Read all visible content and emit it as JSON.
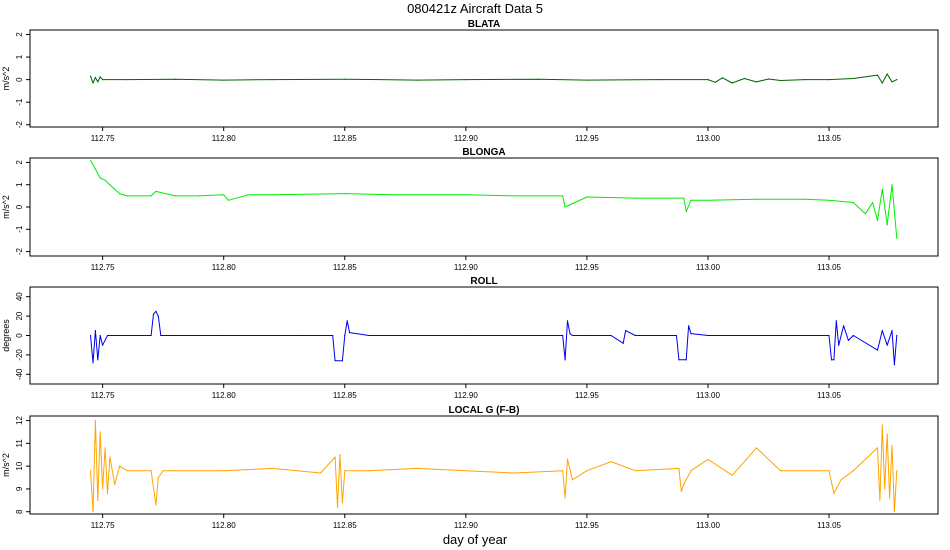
{
  "figure": {
    "title": "080421z   Aircraft Data 5",
    "xlabel": "day of year"
  },
  "chart_data": [
    {
      "type": "line",
      "title": "BLATA",
      "ylabel": "m/s^2",
      "xlim": [
        112.72,
        113.095
      ],
      "ylim": [
        -2.1,
        2.2
      ],
      "yticks": [
        -2,
        -1,
        0,
        1,
        2
      ],
      "xticks": [
        112.75,
        112.8,
        112.85,
        112.9,
        112.95,
        113.0,
        113.05
      ],
      "xtick_labels": [
        "112.75",
        "112.80",
        "112.85",
        "112.90",
        "112.95",
        "113.00",
        "113.05"
      ],
      "color": "#006400",
      "series": [
        {
          "x": [
            112.745,
            112.746,
            112.747,
            112.748,
            112.749,
            112.75,
            112.76,
            112.78,
            112.8,
            112.82,
            112.85,
            112.88,
            112.9,
            112.93,
            112.95,
            112.98,
            113.0,
            113.003,
            113.006,
            113.01,
            113.015,
            113.02,
            113.025,
            113.03,
            113.04,
            113.05,
            113.06,
            113.07,
            113.072,
            113.074,
            113.076,
            113.078
          ],
          "y": [
            0.15,
            -0.15,
            0.1,
            -0.1,
            0.12,
            0.0,
            0.0,
            0.02,
            -0.02,
            0.0,
            0.02,
            -0.02,
            0.0,
            0.02,
            -0.02,
            0.0,
            0.0,
            -0.12,
            0.08,
            -0.15,
            0.05,
            -0.1,
            0.03,
            -0.04,
            0.0,
            0.0,
            0.05,
            0.2,
            -0.15,
            0.25,
            -0.1,
            0.0
          ]
        }
      ]
    },
    {
      "type": "line",
      "title": "BLONGA",
      "ylabel": "m/s^2",
      "xlim": [
        112.72,
        113.095
      ],
      "ylim": [
        -2.2,
        2.2
      ],
      "yticks": [
        -2,
        -1,
        0,
        1,
        2
      ],
      "xticks": [
        112.75,
        112.8,
        112.85,
        112.9,
        112.95,
        113.0,
        113.05
      ],
      "xtick_labels": [
        "112.75",
        "112.80",
        "112.85",
        "112.90",
        "112.95",
        "113.00",
        "113.05"
      ],
      "color": "#00ee00",
      "series": [
        {
          "x": [
            112.745,
            112.747,
            112.749,
            112.751,
            112.753,
            112.755,
            112.757,
            112.76,
            112.77,
            112.772,
            112.78,
            112.79,
            112.8,
            112.802,
            112.81,
            112.82,
            112.85,
            112.87,
            112.9,
            112.92,
            112.94,
            112.941,
            112.95,
            112.97,
            112.99,
            112.991,
            112.993,
            113.0,
            113.02,
            113.04,
            113.05,
            113.06,
            113.065,
            113.068,
            113.07,
            113.072,
            113.074,
            113.076,
            113.078
          ],
          "y": [
            2.1,
            1.7,
            1.3,
            1.2,
            1.0,
            0.8,
            0.6,
            0.5,
            0.5,
            0.7,
            0.5,
            0.5,
            0.55,
            0.3,
            0.55,
            0.55,
            0.6,
            0.55,
            0.55,
            0.5,
            0.5,
            0.0,
            0.45,
            0.4,
            0.4,
            -0.2,
            0.3,
            0.3,
            0.35,
            0.35,
            0.3,
            0.2,
            -0.3,
            0.2,
            -0.6,
            0.8,
            -0.8,
            1.0,
            -1.4
          ]
        }
      ]
    },
    {
      "type": "line",
      "title": "ROLL",
      "ylabel": "degrees",
      "xlim": [
        112.72,
        113.095
      ],
      "ylim": [
        -50,
        50
      ],
      "yticks": [
        -40,
        -20,
        0,
        20,
        40
      ],
      "xticks": [
        112.75,
        112.8,
        112.85,
        112.9,
        112.95,
        113.0,
        113.05
      ],
      "xtick_labels": [
        "112.75",
        "112.80",
        "112.85",
        "112.90",
        "112.95",
        "113.00",
        "113.05"
      ],
      "color": "#0000ee",
      "series": [
        {
          "x": [
            112.745,
            112.746,
            112.747,
            112.748,
            112.749,
            112.75,
            112.752,
            112.77,
            112.771,
            112.772,
            112.773,
            112.774,
            112.78,
            112.8,
            112.83,
            112.845,
            112.846,
            112.849,
            112.85,
            112.851,
            112.852,
            112.86,
            112.9,
            112.94,
            112.941,
            112.942,
            112.943,
            112.944,
            112.95,
            112.96,
            112.965,
            112.966,
            112.97,
            112.987,
            112.988,
            112.991,
            112.992,
            112.993,
            113.0,
            113.03,
            113.05,
            113.051,
            113.052,
            113.053,
            113.054,
            113.056,
            113.058,
            113.06,
            113.07,
            113.072,
            113.074,
            113.076,
            113.077,
            113.078
          ],
          "y": [
            0,
            -28,
            5,
            -25,
            0,
            -10,
            0,
            0,
            22,
            25,
            20,
            0,
            0,
            0,
            0,
            0,
            -26,
            -26,
            0,
            15,
            3,
            0,
            0,
            0,
            -25,
            15,
            2,
            0,
            0,
            0,
            -8,
            5,
            0,
            0,
            -25,
            -25,
            10,
            2,
            0,
            0,
            0,
            -25,
            -25,
            15,
            -10,
            10,
            -5,
            0,
            -15,
            5,
            -10,
            5,
            -30,
            0
          ]
        }
      ]
    },
    {
      "type": "line",
      "title": "LOCAL G (F-B)",
      "ylabel": "m/s^2",
      "xlim": [
        112.72,
        113.095
      ],
      "ylim": [
        7.9,
        12.2
      ],
      "yticks": [
        8,
        9,
        10,
        11,
        12
      ],
      "xticks": [
        112.75,
        112.8,
        112.85,
        112.9,
        112.95,
        113.0,
        113.05
      ],
      "xtick_labels": [
        "112.75",
        "112.80",
        "112.85",
        "112.90",
        "112.95",
        "113.00",
        "113.05"
      ],
      "color": "#ffa500",
      "series": [
        {
          "x": [
            112.745,
            112.746,
            112.747,
            112.748,
            112.749,
            112.75,
            112.751,
            112.752,
            112.753,
            112.755,
            112.757,
            112.76,
            112.77,
            112.772,
            112.773,
            112.775,
            112.78,
            112.8,
            112.82,
            112.84,
            112.846,
            112.847,
            112.848,
            112.849,
            112.85,
            112.86,
            112.88,
            112.9,
            112.92,
            112.94,
            112.941,
            112.942,
            112.944,
            112.95,
            112.96,
            112.97,
            112.988,
            112.989,
            112.99,
            112.993,
            113.0,
            113.01,
            113.02,
            113.03,
            113.05,
            113.052,
            113.055,
            113.06,
            113.07,
            113.071,
            113.072,
            113.073,
            113.074,
            113.075,
            113.076,
            113.077,
            113.078
          ],
          "y": [
            9.8,
            8.0,
            12.0,
            8.5,
            11.5,
            9.0,
            10.8,
            8.8,
            10.4,
            9.2,
            10.0,
            9.8,
            9.8,
            8.3,
            9.5,
            9.8,
            9.8,
            9.8,
            9.9,
            9.7,
            10.4,
            8.2,
            10.5,
            8.4,
            9.8,
            9.8,
            9.9,
            9.8,
            9.7,
            9.8,
            8.6,
            10.3,
            9.4,
            9.8,
            10.2,
            9.8,
            9.9,
            8.9,
            9.2,
            9.8,
            10.3,
            9.6,
            10.8,
            9.8,
            9.8,
            8.8,
            9.4,
            9.8,
            10.8,
            8.5,
            11.8,
            9.0,
            11.4,
            8.6,
            10.9,
            8.0,
            9.8
          ]
        }
      ]
    }
  ]
}
